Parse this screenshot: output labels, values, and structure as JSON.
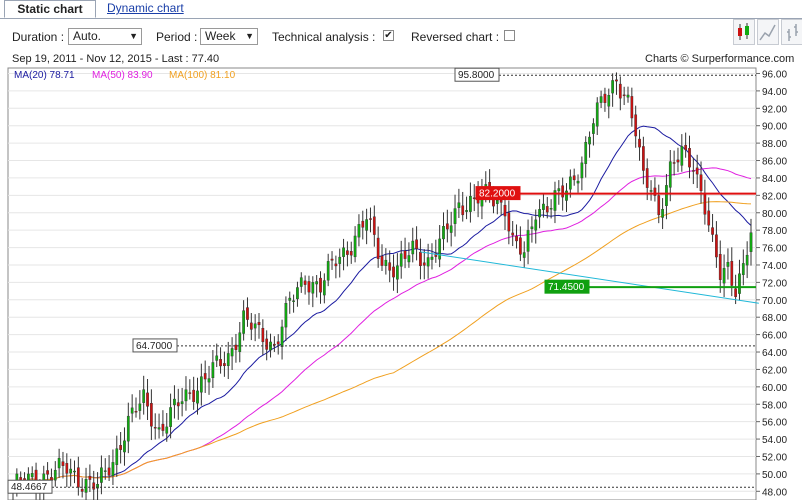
{
  "tabs": {
    "static_label": "Static chart",
    "dynamic_label": "Dynamic chart"
  },
  "toolbar": {
    "duration_label": "Duration :",
    "duration_value": "Auto.",
    "period_label": "Period :",
    "period_value": "Week",
    "technical_label": "Technical analysis :",
    "technical_checked": "✔",
    "reversed_label": "Reversed chart :"
  },
  "chart_icons": [
    "candlestick-icon",
    "line-chart-icon",
    "bar-chart-icon"
  ],
  "info": {
    "range": "Sep 19, 2011 - Nov 12, 2015 - Last : 77.40",
    "credit": "Charts © Surperformance.com"
  },
  "legend": [
    {
      "label": "MA(20)",
      "value": "78.71",
      "color": "#1a1aa0"
    },
    {
      "label": "MA(50)",
      "value": "83.90",
      "color": "#e020e0"
    },
    {
      "label": "MA(100)",
      "value": "81.10",
      "color": "#f0a020"
    }
  ],
  "chart_data": {
    "type": "candlestick",
    "period": "week",
    "ylim": [
      47,
      96.4
    ],
    "yticks": [
      "48.00",
      "50.00",
      "52.00",
      "54.00",
      "56.00",
      "58.00",
      "60.00",
      "62.00",
      "64.00",
      "66.00",
      "68.00",
      "70.00",
      "72.00",
      "74.00",
      "76.00",
      "78.00",
      "80.00",
      "82.00",
      "84.00",
      "86.00",
      "88.00",
      "90.00",
      "92.00",
      "94.00",
      "96.00"
    ],
    "anchors": [
      [
        0,
        48.6
      ],
      [
        8,
        49.8
      ],
      [
        14,
        50.6
      ],
      [
        18,
        49.2
      ],
      [
        22,
        48.5
      ],
      [
        26,
        51.5
      ],
      [
        30,
        56.0
      ],
      [
        34,
        58.5
      ],
      [
        38,
        55.0
      ],
      [
        44,
        58.5
      ],
      [
        50,
        61.0
      ],
      [
        56,
        63.5
      ],
      [
        60,
        67.8
      ],
      [
        64,
        66.0
      ],
      [
        68,
        64.8
      ],
      [
        72,
        69.5
      ],
      [
        76,
        72.5
      ],
      [
        80,
        71.5
      ],
      [
        84,
        74.5
      ],
      [
        88,
        76.5
      ],
      [
        92,
        79.2
      ],
      [
        96,
        74.5
      ],
      [
        100,
        73.5
      ],
      [
        104,
        75.8
      ],
      [
        108,
        74.5
      ],
      [
        112,
        77.0
      ],
      [
        116,
        81.0
      ],
      [
        120,
        81.4
      ],
      [
        124,
        82.0
      ],
      [
        128,
        80.8
      ],
      [
        130,
        76.5
      ],
      [
        133,
        75.0
      ],
      [
        136,
        80.5
      ],
      [
        140,
        81.0
      ],
      [
        144,
        82.5
      ],
      [
        148,
        86.0
      ],
      [
        151,
        90.5
      ],
      [
        154,
        93.2
      ],
      [
        157,
        95.6
      ],
      [
        160,
        92.5
      ],
      [
        162,
        89.0
      ],
      [
        164,
        84.0
      ],
      [
        166,
        83.5
      ],
      [
        168,
        80.0
      ],
      [
        171,
        84.5
      ],
      [
        174,
        87.0
      ],
      [
        177,
        86.0
      ],
      [
        180,
        80.5
      ],
      [
        182,
        76.0
      ],
      [
        184,
        73.0
      ],
      [
        186,
        74.0
      ],
      [
        188,
        71.5
      ],
      [
        190,
        73.5
      ],
      [
        192,
        77.4
      ]
    ],
    "candles_count": 193,
    "moving_averages": [
      {
        "name": "MA(20)",
        "last": 78.71
      },
      {
        "name": "MA(50)",
        "last": 83.9
      },
      {
        "name": "MA(100)",
        "last": 81.1
      }
    ],
    "levels": [
      {
        "label": "95.8000",
        "value": 95.8,
        "style": "dotted",
        "color": "#333333"
      },
      {
        "label": "82.2000",
        "value": 82.2,
        "style": "solid",
        "color": "#e01010"
      },
      {
        "label": "71.4500",
        "value": 71.45,
        "style": "solid",
        "color": "#10a010"
      },
      {
        "label": "64.7000",
        "value": 64.7,
        "style": "dotted",
        "color": "#333333"
      },
      {
        "label": "48.4667",
        "value": 48.4667,
        "style": "dotted",
        "color": "#333333"
      }
    ],
    "trendline": {
      "from": [
        106,
        75.5
      ],
      "to": [
        193,
        69.6
      ],
      "color": "#20b8d8"
    }
  }
}
